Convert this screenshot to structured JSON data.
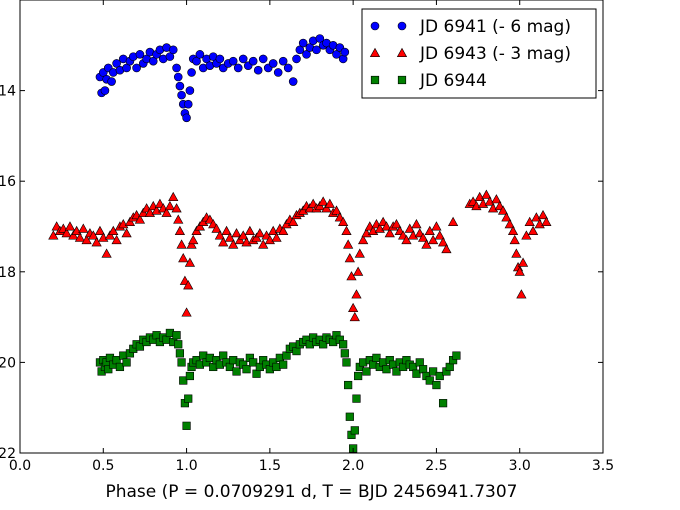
{
  "chart_data": {
    "type": "scatter",
    "title": "",
    "xlabel": "Phase (P = 0.0709291 d, T = BJD 2456941.7307",
    "ylabel": "",
    "xlim": [
      0.0,
      3.5
    ],
    "ylim": [
      22.0,
      12.0
    ],
    "y_inverted": true,
    "grid": false,
    "legend_position": "top-right",
    "x_ticks": [
      0.0,
      0.5,
      1.0,
      1.5,
      2.0,
      2.5,
      3.0,
      3.5
    ],
    "x_tick_labels": [
      "0.0",
      "0.5",
      "1.0",
      "1.5",
      "2.0",
      "2.5",
      "3.0",
      "3.5"
    ],
    "y_ticks": [
      14,
      16,
      18,
      20,
      22
    ],
    "y_tick_labels": [
      "14",
      "16",
      "18",
      "20",
      "22"
    ],
    "series": [
      {
        "name": "JD 6941 (- 6 mag)",
        "marker": "circle",
        "color": "#0000ff",
        "x": [
          0.48,
          0.49,
          0.5,
          0.51,
          0.52,
          0.53,
          0.55,
          0.56,
          0.58,
          0.6,
          0.62,
          0.64,
          0.66,
          0.68,
          0.7,
          0.72,
          0.74,
          0.76,
          0.78,
          0.8,
          0.82,
          0.84,
          0.86,
          0.88,
          0.9,
          0.92,
          0.94,
          0.95,
          0.96,
          0.97,
          0.98,
          0.99,
          1.0,
          1.01,
          1.02,
          1.03,
          1.04,
          1.06,
          1.08,
          1.1,
          1.12,
          1.14,
          1.16,
          1.18,
          1.2,
          1.22,
          1.25,
          1.28,
          1.31,
          1.34,
          1.37,
          1.4,
          1.43,
          1.46,
          1.49,
          1.52,
          1.55,
          1.58,
          1.61,
          1.64,
          1.66,
          1.68,
          1.7,
          1.72,
          1.74,
          1.76,
          1.78,
          1.8,
          1.82,
          1.84,
          1.86,
          1.88,
          1.9,
          1.92,
          1.94,
          1.95
        ],
        "y": [
          13.7,
          14.05,
          13.6,
          14.0,
          13.75,
          13.5,
          13.8,
          13.6,
          13.4,
          13.55,
          13.3,
          13.5,
          13.35,
          13.25,
          13.5,
          13.2,
          13.4,
          13.3,
          13.15,
          13.35,
          13.2,
          13.1,
          13.3,
          13.05,
          13.25,
          13.1,
          13.5,
          13.7,
          13.9,
          14.1,
          14.3,
          14.5,
          14.6,
          14.3,
          14.0,
          13.6,
          13.3,
          13.35,
          13.2,
          13.5,
          13.3,
          13.45,
          13.25,
          13.4,
          13.3,
          13.5,
          13.4,
          13.35,
          13.5,
          13.3,
          13.45,
          13.35,
          13.55,
          13.3,
          13.5,
          13.4,
          13.6,
          13.35,
          13.5,
          13.8,
          13.3,
          13.1,
          12.95,
          13.2,
          13.05,
          12.9,
          13.1,
          12.85,
          13.0,
          12.95,
          13.1,
          13.0,
          13.2,
          13.05,
          13.3,
          13.15
        ]
      },
      {
        "name": "JD 6943 (- 3 mag)",
        "marker": "triangle",
        "color": "#ff0000",
        "x": [
          0.2,
          0.22,
          0.24,
          0.26,
          0.28,
          0.3,
          0.32,
          0.34,
          0.36,
          0.38,
          0.4,
          0.42,
          0.44,
          0.46,
          0.48,
          0.5,
          0.52,
          0.54,
          0.56,
          0.58,
          0.6,
          0.62,
          0.64,
          0.66,
          0.68,
          0.7,
          0.72,
          0.74,
          0.76,
          0.78,
          0.8,
          0.82,
          0.84,
          0.86,
          0.88,
          0.9,
          0.92,
          0.94,
          0.95,
          0.96,
          0.97,
          0.98,
          0.99,
          1.0,
          1.01,
          1.02,
          1.03,
          1.04,
          1.06,
          1.08,
          1.1,
          1.12,
          1.14,
          1.16,
          1.18,
          1.2,
          1.22,
          1.24,
          1.26,
          1.28,
          1.3,
          1.32,
          1.34,
          1.36,
          1.38,
          1.4,
          1.42,
          1.44,
          1.46,
          1.48,
          1.5,
          1.52,
          1.54,
          1.56,
          1.58,
          1.6,
          1.62,
          1.64,
          1.66,
          1.68,
          1.7,
          1.72,
          1.74,
          1.76,
          1.78,
          1.8,
          1.82,
          1.84,
          1.86,
          1.88,
          1.9,
          1.92,
          1.94,
          1.96,
          1.97,
          1.98,
          1.99,
          2.0,
          2.01,
          2.02,
          2.03,
          2.04,
          2.06,
          2.08,
          2.1,
          2.12,
          2.14,
          2.16,
          2.18,
          2.2,
          2.22,
          2.24,
          2.26,
          2.28,
          2.3,
          2.32,
          2.34,
          2.36,
          2.38,
          2.4,
          2.42,
          2.44,
          2.46,
          2.48,
          2.5,
          2.52,
          2.54,
          2.56,
          2.6,
          2.7,
          2.72,
          2.74,
          2.76,
          2.78,
          2.8,
          2.82,
          2.84,
          2.86,
          2.88,
          2.9,
          2.92,
          2.94,
          2.96,
          2.97,
          2.98,
          2.99,
          3.0,
          3.01,
          3.02,
          3.04,
          3.06,
          3.08,
          3.1,
          3.12,
          3.14,
          3.16
        ],
        "y": [
          17.2,
          17.0,
          17.1,
          17.05,
          17.15,
          17.0,
          17.2,
          17.1,
          17.25,
          17.05,
          17.3,
          17.15,
          17.2,
          17.35,
          17.1,
          17.25,
          17.6,
          17.2,
          17.1,
          17.3,
          17.0,
          16.95,
          17.15,
          16.9,
          16.8,
          16.75,
          16.85,
          16.7,
          16.6,
          16.7,
          16.55,
          16.65,
          16.5,
          16.6,
          16.7,
          16.55,
          16.35,
          16.6,
          16.85,
          17.1,
          17.4,
          17.7,
          18.2,
          18.9,
          18.3,
          17.8,
          17.4,
          17.3,
          17.1,
          17.0,
          16.9,
          16.8,
          16.85,
          16.95,
          17.05,
          17.2,
          17.35,
          17.1,
          17.25,
          17.4,
          17.15,
          17.3,
          17.2,
          17.35,
          17.1,
          17.3,
          17.25,
          17.15,
          17.4,
          17.2,
          17.3,
          17.1,
          17.25,
          17.05,
          17.1,
          16.95,
          16.85,
          16.9,
          16.75,
          16.7,
          16.65,
          16.55,
          16.6,
          16.5,
          16.6,
          16.55,
          16.45,
          16.6,
          16.5,
          16.7,
          16.65,
          16.8,
          16.9,
          17.1,
          17.4,
          17.7,
          18.1,
          18.8,
          19.0,
          18.5,
          18.0,
          17.6,
          17.3,
          17.15,
          17.0,
          17.1,
          16.95,
          17.05,
          16.9,
          17.0,
          17.15,
          17.0,
          16.95,
          17.1,
          17.2,
          17.3,
          17.05,
          17.2,
          16.95,
          17.15,
          17.25,
          17.4,
          17.1,
          17.3,
          17.0,
          17.2,
          17.35,
          17.5,
          16.9,
          16.5,
          16.45,
          16.55,
          16.35,
          16.5,
          16.3,
          16.45,
          16.6,
          16.4,
          16.55,
          16.65,
          16.8,
          16.95,
          17.1,
          17.3,
          17.6,
          17.9,
          18.0,
          18.5,
          17.8,
          17.2,
          16.9,
          17.1,
          16.8,
          16.95,
          16.75,
          16.9
        ]
      },
      {
        "name": "JD 6944",
        "marker": "square",
        "color": "#008000",
        "x": [
          0.48,
          0.49,
          0.5,
          0.51,
          0.52,
          0.53,
          0.54,
          0.56,
          0.58,
          0.6,
          0.62,
          0.64,
          0.66,
          0.68,
          0.7,
          0.72,
          0.74,
          0.76,
          0.78,
          0.8,
          0.82,
          0.84,
          0.86,
          0.88,
          0.9,
          0.92,
          0.94,
          0.95,
          0.96,
          0.97,
          0.98,
          0.99,
          1.0,
          1.01,
          1.02,
          1.03,
          1.04,
          1.06,
          1.08,
          1.1,
          1.12,
          1.14,
          1.16,
          1.18,
          1.2,
          1.22,
          1.24,
          1.26,
          1.28,
          1.3,
          1.32,
          1.34,
          1.36,
          1.38,
          1.4,
          1.42,
          1.44,
          1.46,
          1.48,
          1.5,
          1.52,
          1.54,
          1.56,
          1.58,
          1.6,
          1.62,
          1.64,
          1.66,
          1.68,
          1.7,
          1.72,
          1.74,
          1.76,
          1.78,
          1.8,
          1.82,
          1.84,
          1.86,
          1.88,
          1.9,
          1.92,
          1.94,
          1.95,
          1.96,
          1.97,
          1.98,
          1.99,
          2.0,
          2.01,
          2.02,
          2.03,
          2.04,
          2.06,
          2.08,
          2.1,
          2.12,
          2.14,
          2.16,
          2.18,
          2.2,
          2.22,
          2.24,
          2.26,
          2.28,
          2.3,
          2.32,
          2.34,
          2.36,
          2.38,
          2.4,
          2.42,
          2.44,
          2.46,
          2.48,
          2.5,
          2.52,
          2.54,
          2.56,
          2.58,
          2.6,
          2.62
        ],
        "y": [
          20.0,
          20.2,
          19.95,
          20.1,
          20.0,
          20.15,
          19.9,
          20.05,
          19.95,
          20.1,
          19.85,
          20.0,
          19.8,
          19.7,
          19.6,
          19.65,
          19.5,
          19.55,
          19.45,
          19.5,
          19.4,
          19.55,
          19.45,
          19.5,
          19.35,
          19.55,
          19.4,
          19.6,
          19.8,
          20.0,
          20.4,
          20.9,
          21.4,
          20.8,
          20.3,
          20.1,
          20.0,
          19.95,
          20.05,
          19.85,
          20.0,
          19.9,
          20.1,
          19.95,
          20.05,
          19.85,
          20.0,
          20.1,
          19.95,
          20.2,
          20.0,
          20.05,
          20.15,
          19.9,
          20.0,
          20.25,
          20.1,
          19.95,
          20.05,
          20.15,
          20.0,
          20.1,
          19.9,
          20.05,
          19.85,
          19.7,
          19.65,
          19.75,
          19.6,
          19.55,
          19.5,
          19.6,
          19.45,
          19.55,
          19.5,
          19.6,
          19.45,
          19.5,
          19.55,
          19.4,
          19.5,
          19.6,
          19.8,
          20.0,
          20.5,
          21.2,
          21.6,
          21.9,
          21.5,
          20.8,
          20.3,
          20.1,
          20.0,
          20.2,
          19.95,
          20.05,
          19.9,
          20.1,
          20.0,
          20.15,
          19.95,
          20.05,
          20.2,
          20.0,
          20.1,
          19.95,
          20.05,
          20.1,
          20.25,
          20.0,
          20.15,
          20.3,
          20.4,
          20.2,
          20.5,
          20.3,
          20.9,
          20.2,
          20.1,
          19.95,
          19.85
        ]
      }
    ]
  }
}
